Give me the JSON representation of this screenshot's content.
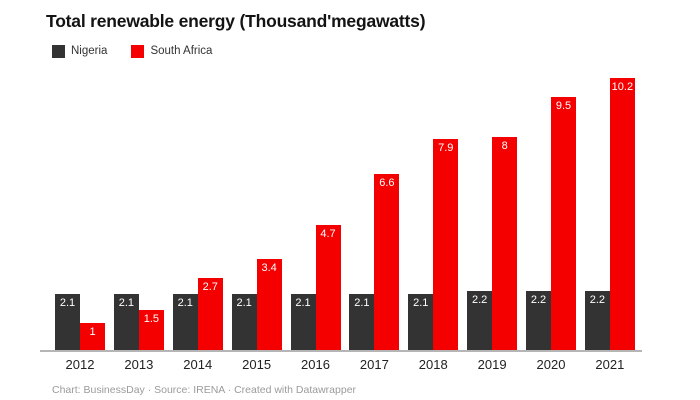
{
  "chart": {
    "title": "Total renewable energy (Thousand'megawatts)",
    "footer": "Chart: BusinessDay · Source: IRENA · Created with Datawrapper"
  },
  "chart_data": {
    "type": "bar",
    "title": "Total renewable energy (Thousand'megawatts)",
    "categories": [
      "2012",
      "2013",
      "2014",
      "2015",
      "2016",
      "2017",
      "2018",
      "2019",
      "2020",
      "2021"
    ],
    "series": [
      {
        "name": "Nigeria",
        "color": "#333333",
        "values": [
          2.1,
          2.1,
          2.1,
          2.1,
          2.1,
          2.1,
          2.1,
          2.2,
          2.2,
          2.2
        ]
      },
      {
        "name": "South Africa",
        "color": "#f40000",
        "values": [
          1,
          1.5,
          2.7,
          3.4,
          4.7,
          6.6,
          7.9,
          8,
          9.5,
          10.2
        ]
      }
    ],
    "xlabel": "",
    "ylabel": "",
    "ylim": [
      0,
      10.2
    ],
    "grid": false,
    "legend_position": "top-left",
    "value_labels": "inside-top-white",
    "source_note": "Chart: BusinessDay · Source: IRENA · Created with Datawrapper"
  }
}
